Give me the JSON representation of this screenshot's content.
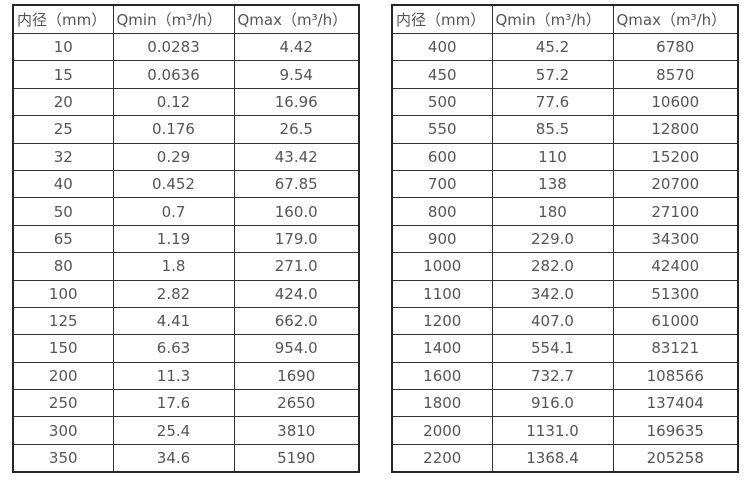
{
  "page": {
    "background": "#ffffff"
  },
  "colors": {
    "outer_border": "#262626",
    "cell_border": "#333333",
    "text": "#555555"
  },
  "tables": [
    {
      "name": "flow-table-small-diameters",
      "headers": [
        "内径（mm）",
        "Qmin（m³/h）",
        "Qmax（m³/h）"
      ],
      "rows": [
        [
          "10",
          "0.0283",
          "4.42"
        ],
        [
          "15",
          "0.0636",
          "9.54"
        ],
        [
          "20",
          "0.12",
          "16.96"
        ],
        [
          "25",
          "0.176",
          "26.5"
        ],
        [
          "32",
          "0.29",
          "43.42"
        ],
        [
          "40",
          "0.452",
          "67.85"
        ],
        [
          "50",
          "0.7",
          "160.0"
        ],
        [
          "65",
          "1.19",
          "179.0"
        ],
        [
          "80",
          "1.8",
          "271.0"
        ],
        [
          "100",
          "2.82",
          "424.0"
        ],
        [
          "125",
          "4.41",
          "662.0"
        ],
        [
          "150",
          "6.63",
          "954.0"
        ],
        [
          "200",
          "11.3",
          "1690"
        ],
        [
          "250",
          "17.6",
          "2650"
        ],
        [
          "300",
          "25.4",
          "3810"
        ],
        [
          "350",
          "34.6",
          "5190"
        ]
      ]
    },
    {
      "name": "flow-table-large-diameters",
      "headers": [
        "内径（mm）",
        "Qmin（m³/h）",
        "Qmax（m³/h）"
      ],
      "rows": [
        [
          "400",
          "45.2",
          "6780"
        ],
        [
          "450",
          "57.2",
          "8570"
        ],
        [
          "500",
          "77.6",
          "10600"
        ],
        [
          "550",
          "85.5",
          "12800"
        ],
        [
          "600",
          "110",
          "15200"
        ],
        [
          "700",
          "138",
          "20700"
        ],
        [
          "800",
          "180",
          "27100"
        ],
        [
          "900",
          "229.0",
          "34300"
        ],
        [
          "1000",
          "282.0",
          "42400"
        ],
        [
          "1100",
          "342.0",
          "51300"
        ],
        [
          "1200",
          "407.0",
          "61000"
        ],
        [
          "1400",
          "554.1",
          "83121"
        ],
        [
          "1600",
          "732.7",
          "108566"
        ],
        [
          "1800",
          "916.0",
          "137404"
        ],
        [
          "2000",
          "1131.0",
          "169635"
        ],
        [
          "2200",
          "1368.4",
          "205258"
        ]
      ]
    }
  ]
}
